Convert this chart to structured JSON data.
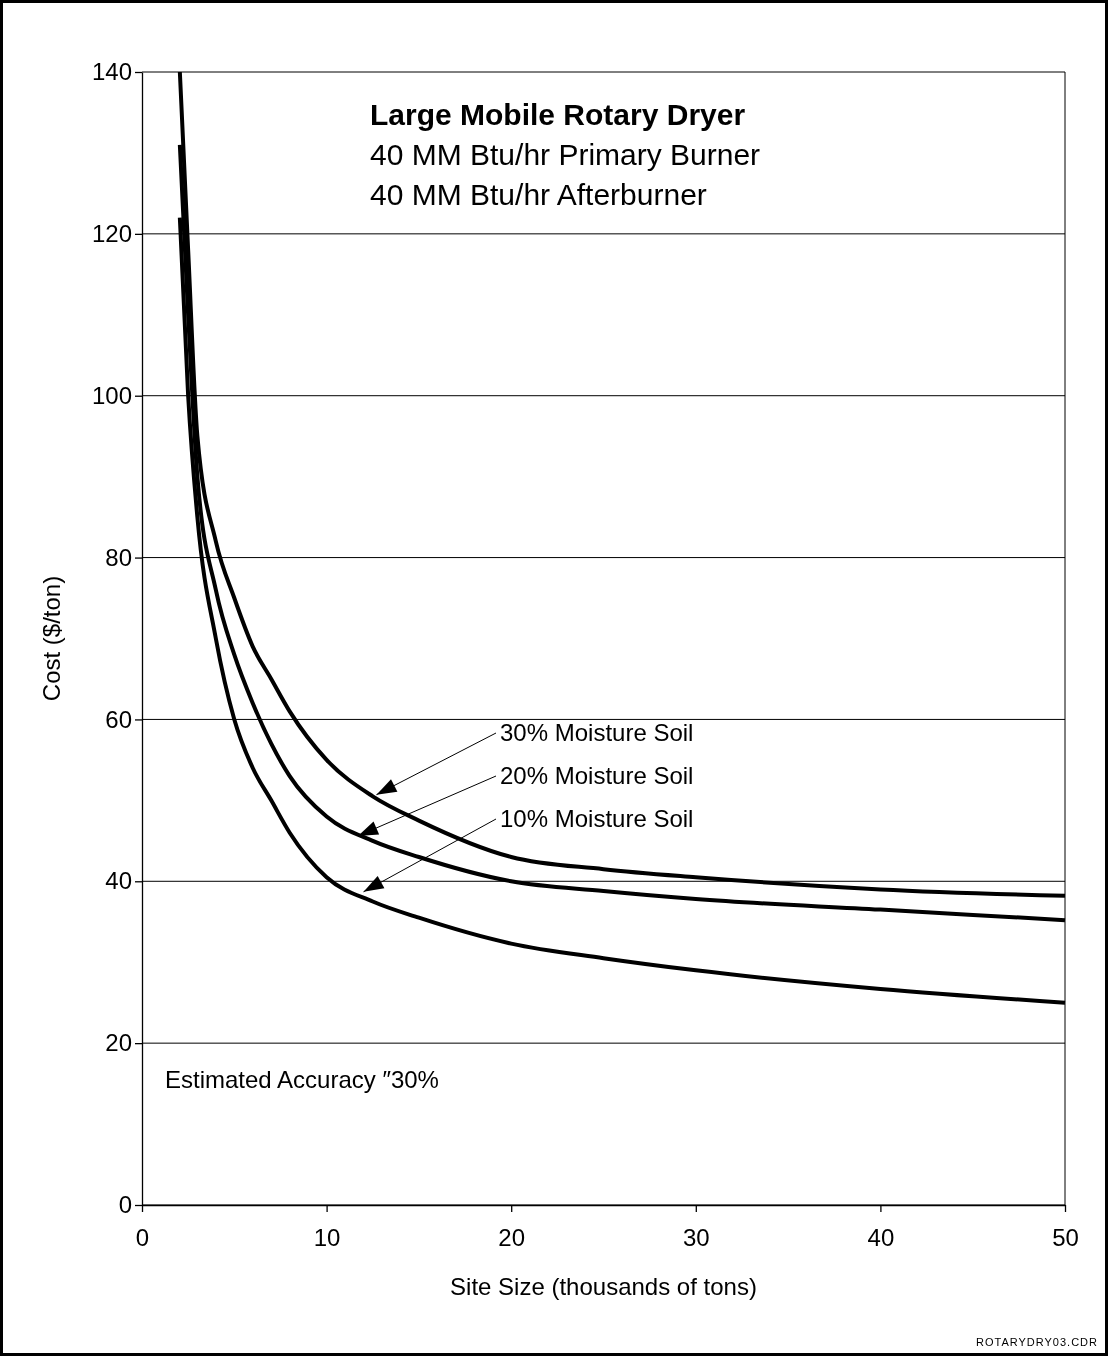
{
  "chart_data": {
    "type": "line",
    "title": "Large Mobile Rotary Dryer",
    "subtitle": "40 MM Btu/hr Primary Burner\n40 MM Btu/hr Afterburner",
    "xlabel": "Site Size (thousands of tons)",
    "ylabel": "Cost ($/ton)",
    "x": [
      2.05,
      2.5,
      3,
      4,
      5,
      6,
      7,
      8,
      10,
      12.5,
      15,
      20,
      25,
      30,
      40,
      50
    ],
    "series": [
      {
        "color": "#000000",
        "values": [
          140,
          118,
          95,
          82,
          75,
          69,
          65,
          61,
          55,
          50.5,
          47.5,
          43,
          41.5,
          40.5,
          39,
          38.2
        ]
      },
      {
        "color": "#000000",
        "values": [
          131,
          110,
          90,
          76,
          68,
          62,
          57,
          53,
          48,
          45,
          43,
          40,
          38.8,
          37.8,
          36.5,
          35.2
        ]
      },
      {
        "color": "#000000",
        "values": [
          122,
          100,
          85,
          70,
          60,
          54,
          50,
          46,
          40.5,
          37.5,
          35.5,
          32.3,
          30.5,
          29,
          26.7,
          25
        ]
      }
    ],
    "xlim": [
      0,
      50
    ],
    "xticks": [
      0,
      10,
      20,
      30,
      40,
      50
    ],
    "ylim": [
      0,
      140
    ],
    "yticks": [
      0,
      20,
      40,
      60,
      80,
      100,
      120,
      140
    ],
    "grid": "y",
    "line_style": "solid",
    "marker": "none",
    "annotations": [
      {
        "text": "30% Moisture Soil",
        "x": 12.7,
        "y": 50.7
      },
      {
        "text": "20% Moisture Soil",
        "x": 11.7,
        "y": 45.6
      },
      {
        "text": "10% Moisture Soil",
        "x": 12,
        "y": 38.7
      },
      "Estimated Accuracy ″30%",
      "ROTARYDRY03.CDR"
    ]
  }
}
